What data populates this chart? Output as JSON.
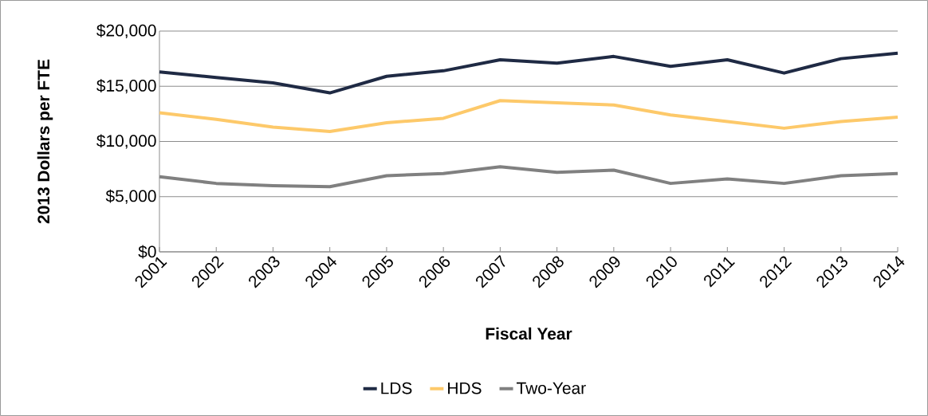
{
  "chart_data": {
    "type": "line",
    "xlabel": "Fiscal Year",
    "ylabel": "2013 Dollars per FTE",
    "categories": [
      "2001",
      "2002",
      "2003",
      "2004",
      "2005",
      "2006",
      "2007",
      "2008",
      "2009",
      "2010",
      "2011",
      "2012",
      "2013",
      "2014"
    ],
    "series": [
      {
        "name": "LDS",
        "color": "#1f2a44",
        "values": [
          16300,
          15800,
          15300,
          14400,
          15900,
          16400,
          17400,
          17100,
          17700,
          16800,
          17400,
          16200,
          17500,
          18000
        ]
      },
      {
        "name": "HDS",
        "color": "#fdc96a",
        "values": [
          12600,
          12000,
          11300,
          10900,
          11700,
          12100,
          13700,
          13500,
          13300,
          12400,
          11800,
          11200,
          11800,
          12200
        ]
      },
      {
        "name": "Two-Year",
        "color": "#808080",
        "values": [
          6800,
          6200,
          6000,
          5900,
          6900,
          7100,
          7700,
          7200,
          7400,
          6200,
          6600,
          6200,
          6900,
          7100
        ]
      }
    ],
    "ylim": [
      0,
      20000
    ],
    "yticks": [
      {
        "value": 0,
        "label": "$0"
      },
      {
        "value": 5000,
        "label": "$5,000"
      },
      {
        "value": 10000,
        "label": "$10,000"
      },
      {
        "value": 15000,
        "label": "$15,000"
      },
      {
        "value": 20000,
        "label": "$20,000"
      }
    ],
    "grid": "y",
    "legend": "bottom",
    "marker": "none",
    "line_style": "solid"
  }
}
